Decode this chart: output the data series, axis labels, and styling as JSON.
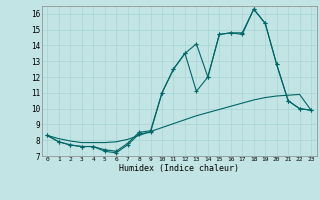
{
  "xlabel": "Humidex (Indice chaleur)",
  "xlim": [
    -0.5,
    23.5
  ],
  "ylim": [
    7,
    16.5
  ],
  "yticks": [
    7,
    8,
    9,
    10,
    11,
    12,
    13,
    14,
    15,
    16
  ],
  "xticks": [
    0,
    1,
    2,
    3,
    4,
    5,
    6,
    7,
    8,
    9,
    10,
    11,
    12,
    13,
    14,
    15,
    16,
    17,
    18,
    19,
    20,
    21,
    22,
    23
  ],
  "bg_color": "#c2e4e4",
  "line_color": "#006666",
  "grid_color": "#a8d4d4",
  "series1_x": [
    0,
    1,
    2,
    3,
    4,
    5,
    6,
    7,
    8,
    9,
    10,
    11,
    12,
    13,
    14,
    15,
    16,
    17,
    18,
    19,
    20,
    21,
    22,
    23
  ],
  "series1_y": [
    8.3,
    7.9,
    7.7,
    7.6,
    7.6,
    7.3,
    7.2,
    7.7,
    8.4,
    8.5,
    11.0,
    12.5,
    13.5,
    11.1,
    12.0,
    14.7,
    14.8,
    14.7,
    16.3,
    15.4,
    12.8,
    10.5,
    10.0,
    9.9
  ],
  "series2_x": [
    0,
    1,
    2,
    3,
    4,
    5,
    6,
    7,
    8,
    9,
    10,
    11,
    12,
    13,
    14,
    15,
    16,
    17,
    18,
    19,
    20,
    21,
    22,
    23
  ],
  "series2_y": [
    8.3,
    7.9,
    7.7,
    7.6,
    7.6,
    7.4,
    7.3,
    7.8,
    8.5,
    8.6,
    11.0,
    12.5,
    13.5,
    14.1,
    12.0,
    14.7,
    14.8,
    14.8,
    16.3,
    15.4,
    12.8,
    10.5,
    10.0,
    9.9
  ],
  "series3_x": [
    0,
    1,
    2,
    3,
    4,
    5,
    6,
    7,
    8,
    9,
    10,
    11,
    12,
    13,
    14,
    15,
    16,
    17,
    18,
    19,
    20,
    21,
    22,
    23
  ],
  "series3_y": [
    8.3,
    8.1,
    7.95,
    7.85,
    7.85,
    7.85,
    7.9,
    8.05,
    8.3,
    8.55,
    8.8,
    9.05,
    9.3,
    9.55,
    9.75,
    9.95,
    10.15,
    10.35,
    10.55,
    10.7,
    10.8,
    10.85,
    10.9,
    9.9
  ]
}
